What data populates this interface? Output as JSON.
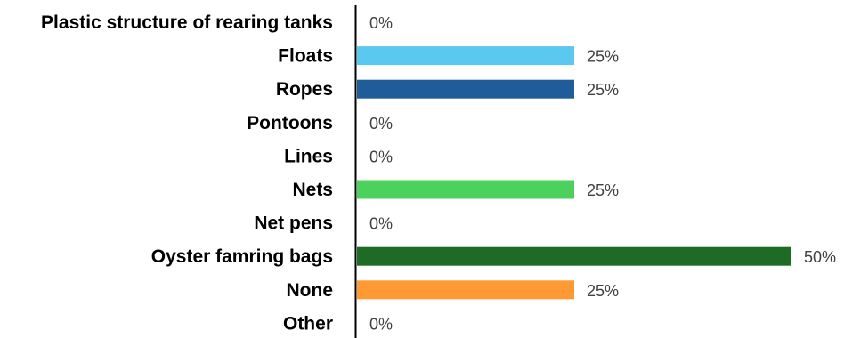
{
  "chart_data": {
    "type": "bar",
    "orientation": "horizontal",
    "categories": [
      "Plastic structure of rearing tanks",
      "Floats",
      "Ropes",
      "Pontoons",
      "Lines",
      "Nets",
      "Net pens",
      "Oyster famring bags",
      "None",
      "Other"
    ],
    "values": [
      0,
      25,
      25,
      0,
      0,
      25,
      0,
      50,
      25,
      0
    ],
    "value_labels": [
      "0%",
      "25%",
      "25%",
      "0%",
      "0%",
      "25%",
      "0%",
      "50%",
      "25%",
      "0%"
    ],
    "colors": [
      "#5B9BD5",
      "#5BC8F0",
      "#1F5C99",
      "#5B9BD5",
      "#5B9BD5",
      "#4CD15C",
      "#5B9BD5",
      "#1E6B25",
      "#FF9933",
      "#5B9BD5"
    ],
    "xlim": [
      0,
      50
    ],
    "grid": false,
    "legend": "none"
  }
}
